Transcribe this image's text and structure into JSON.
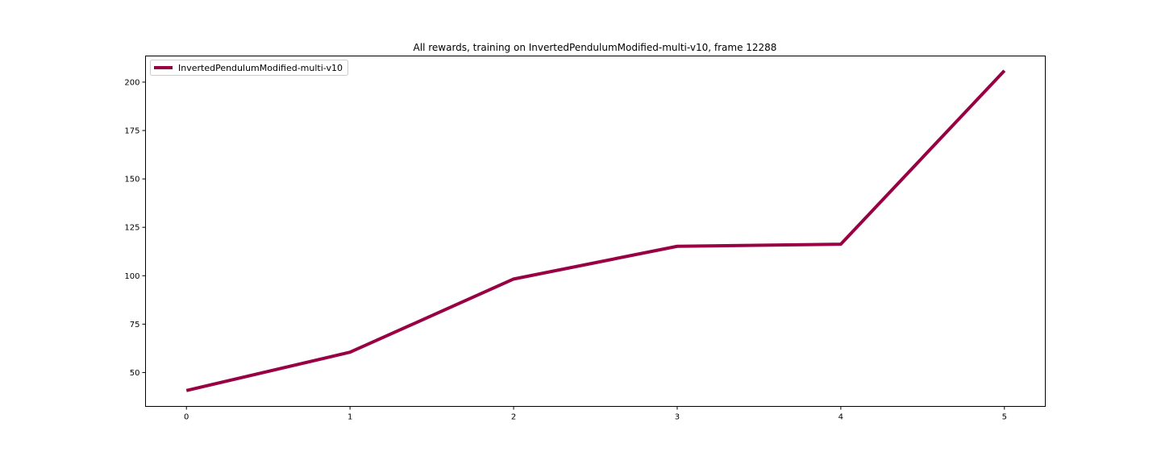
{
  "chart_data": {
    "type": "line",
    "title": "All rewards, training on InvertedPendulumModified-multi-v10, frame 12288",
    "xlabel": "",
    "ylabel": "",
    "x": [
      0,
      1,
      2,
      3,
      4,
      5
    ],
    "xticks": [
      0,
      1,
      2,
      3,
      4,
      5
    ],
    "yticks": [
      50,
      75,
      100,
      125,
      150,
      175,
      200
    ],
    "xlim": [
      -0.25,
      5.25
    ],
    "ylim": [
      32.5,
      213.5
    ],
    "grid": false,
    "legend_position": "top-left",
    "series": [
      {
        "name": "InvertedPendulumModified-multi-v10",
        "color": "#990044",
        "values": [
          40.7,
          60.5,
          98.3,
          115.2,
          116.3,
          205.9
        ]
      }
    ]
  }
}
